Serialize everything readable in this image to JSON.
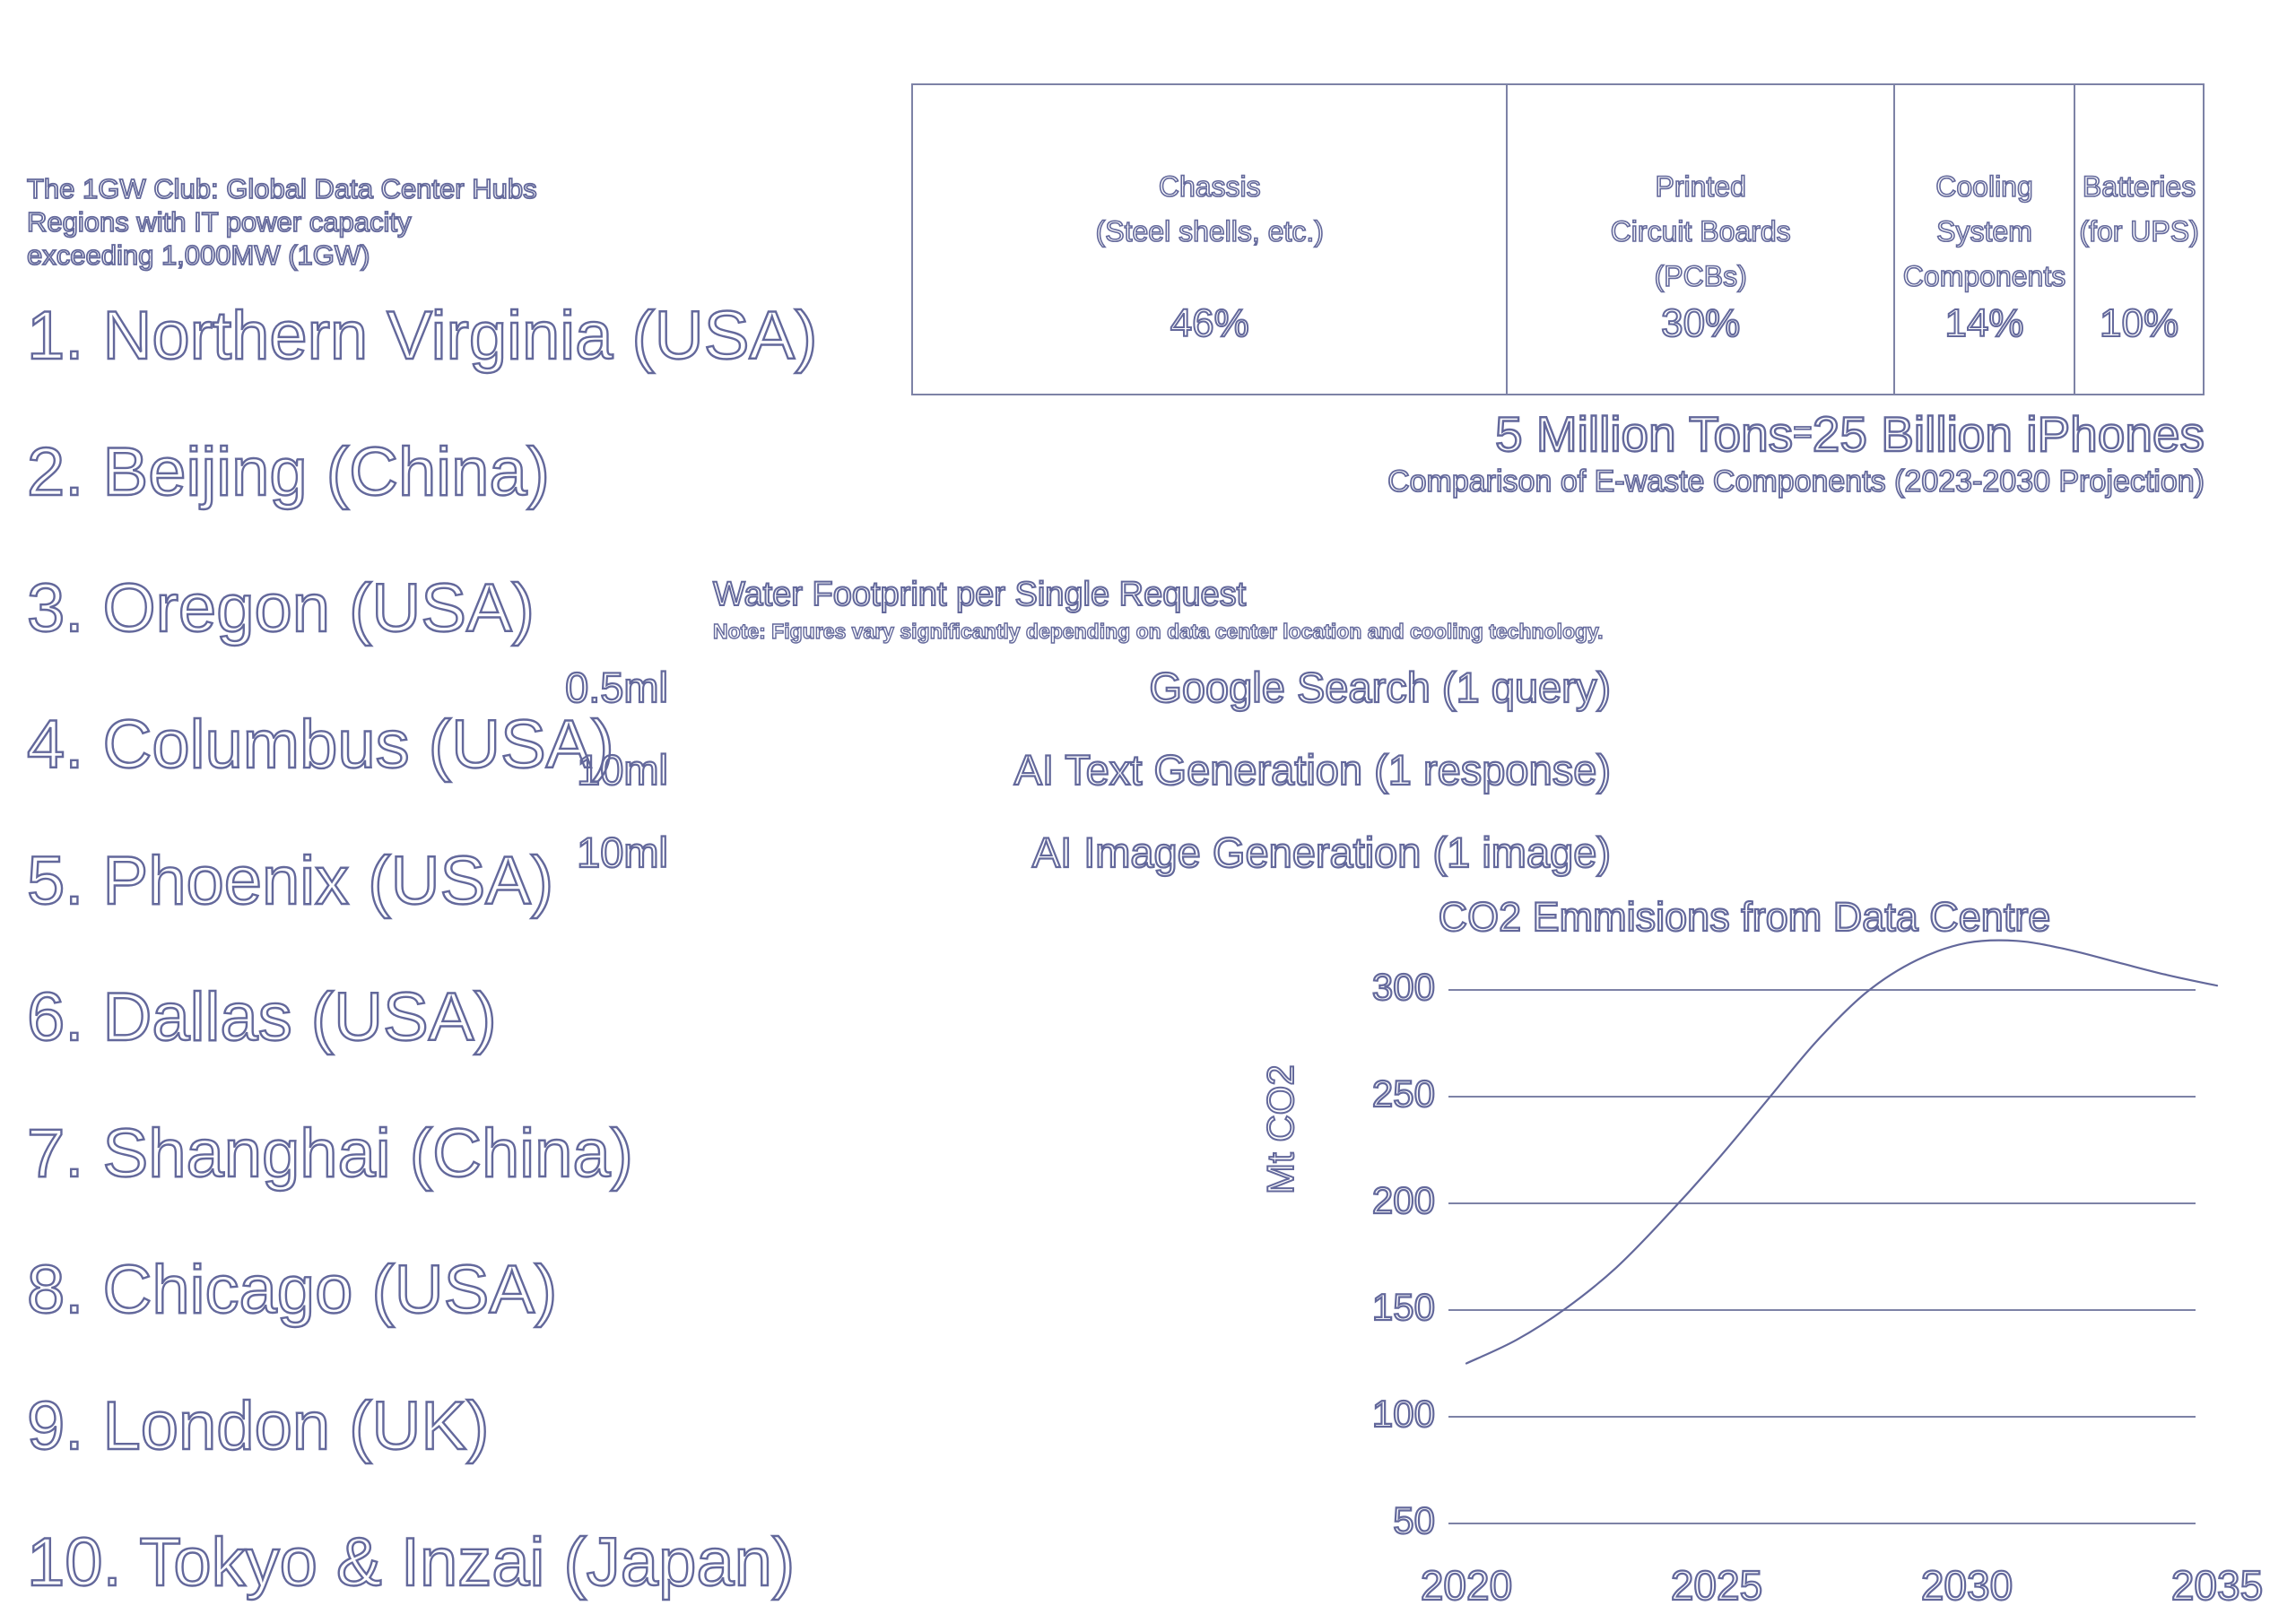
{
  "colors": {
    "ink": "#63689b",
    "line": "#7d82a6"
  },
  "header": {
    "lines": [
      "The 1GW Club: Global Data Center Hubs",
      "Regions with IT power capacity",
      "exceeding 1,000MW (1GW)"
    ]
  },
  "regions": {
    "items": [
      "1. Northern Virginia (USA)",
      "2. Beijing (China)",
      "3. Oregon (USA)",
      "4. Columbus (USA)",
      "5. Phoenix (USA)",
      "6. Dallas (USA)",
      "7. Shanghai (China)",
      "8. Chicago (USA)",
      "9. London (UK)",
      "10. Tokyo & Inzai (Japan)"
    ]
  },
  "ewaste": {
    "headline_left": "5 Million Tons",
    "headline_eq": "=",
    "headline_right": "25 Billion iPhones",
    "subtitle": "Comparison of E-waste Components (2023-2030 Projection)",
    "cells": [
      {
        "lines": [
          "Chassis",
          "(Steel shells, etc.)",
          ""
        ],
        "pct": "46%",
        "width_pct": 46
      },
      {
        "lines": [
          "Printed",
          "Circuit Boards",
          "(PCBs)"
        ],
        "pct": "30%",
        "width_pct": 30
      },
      {
        "lines": [
          "Cooling",
          "System",
          "Components"
        ],
        "pct": "14%",
        "width_pct": 14
      },
      {
        "lines": [
          "Batteries",
          "(for UPS)",
          ""
        ],
        "pct": "10%",
        "width_pct": 10
      }
    ]
  },
  "water": {
    "title": "Water Footprint per Single Request",
    "note": "Note: Figures vary significantly depending on data center location and cooling technology.",
    "rows": [
      {
        "value": "0.5ml",
        "label": "Google Search (1 query)"
      },
      {
        "value": "10ml",
        "label": "AI Text Generation (1 response)"
      },
      {
        "value": "10ml",
        "label": "AI Image Generation (1 image)"
      }
    ]
  },
  "chart_data": {
    "type": "line",
    "title": "CO2 Emmisions from Data Centre",
    "ylabel": "Mt CO2",
    "xlabel": "",
    "x": [
      2020,
      2021,
      2022,
      2023,
      2024,
      2025,
      2026,
      2027,
      2028,
      2029,
      2030,
      2031,
      2032,
      2033,
      2034,
      2035
    ],
    "series": [
      {
        "name": "CO2 emissions",
        "values": [
          125,
          136,
          151,
          170,
          194,
          220,
          248,
          276,
          299,
          314,
          322,
          323,
          319,
          313,
          307,
          302
        ]
      }
    ],
    "yticks": [
      300,
      250,
      200,
      150,
      100,
      50
    ],
    "xticks": [
      2020,
      2025,
      2030,
      2035
    ],
    "xlim": [
      2020,
      2035
    ],
    "ylim": [
      50,
      300
    ],
    "grid": true,
    "legend": false
  }
}
